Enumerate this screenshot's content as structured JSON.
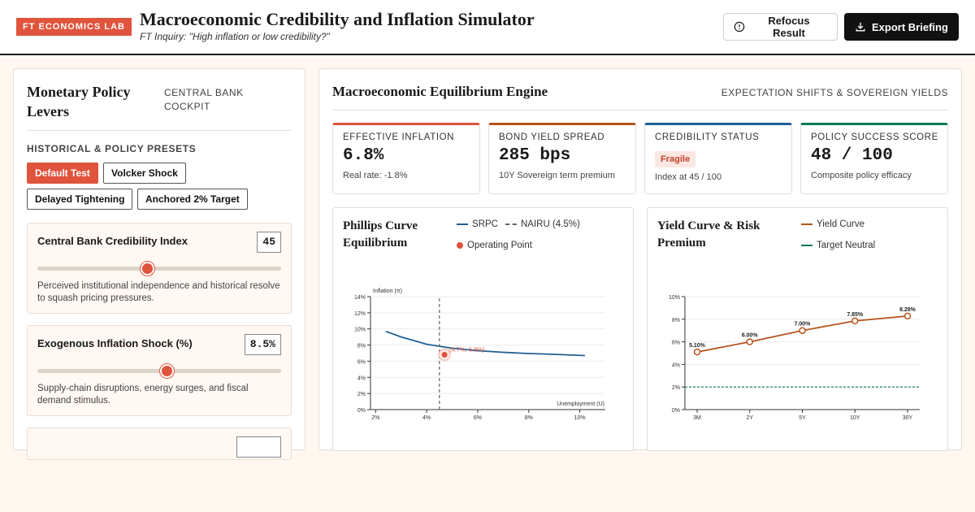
{
  "header": {
    "brand": "FT ECONOMICS LAB",
    "title": "Macroeconomic Credibility and Inflation Simulator",
    "subtitle": "FT Inquiry: \"High inflation or low credibility?\"",
    "refocus_label": "Refocus Result",
    "export_label": "Export Briefing"
  },
  "left_panel": {
    "title": "Monetary Policy Levers",
    "tag": "CENTRAL BANK COCKPIT",
    "presets_label": "HISTORICAL & POLICY PRESETS",
    "presets": [
      {
        "label": "Default Test",
        "active": true
      },
      {
        "label": "Volcker Shock",
        "active": false
      },
      {
        "label": "Delayed Tightening",
        "active": false
      },
      {
        "label": "Anchored 2% Target",
        "active": false
      }
    ],
    "levers": [
      {
        "label": "Central Bank Credibility Index",
        "value": "45",
        "fraction": 0.45,
        "description": "Perceived institutional independence and historical resolve to squash pricing pressures."
      },
      {
        "label": "Exogenous Inflation Shock (%)",
        "value": "8.5%",
        "fraction": 0.53,
        "description": "Supply-chain disruptions, energy surges, and fiscal demand stimulus."
      }
    ]
  },
  "right_panel": {
    "title": "Macroeconomic Equilibrium Engine",
    "tag": "EXPECTATION SHIFTS & SOVEREIGN YIELDS",
    "kpis": [
      {
        "label": "EFFECTIVE INFLATION",
        "value": "6.8%",
        "sub": "Real rate: -1.8%",
        "color": "#e0533d"
      },
      {
        "label": "BOND YIELD SPREAD",
        "value": "285 bps",
        "sub": "10Y Sovereign term premium",
        "color": "#b5541c"
      },
      {
        "label": "CREDIBILITY STATUS",
        "badge": "Fragile",
        "sub": "Index at 45 / 100",
        "color": "#1f5f95"
      },
      {
        "label": "POLICY SUCCESS SCORE",
        "value": "48 / 100",
        "sub": "Composite policy efficacy",
        "color": "#0f7a58"
      }
    ]
  },
  "charts": {
    "phillips": {
      "title": "Phillips Curve Equilibrium",
      "legend": {
        "srpc": "SRPC",
        "nairu": "NAIRU (4.5%)",
        "op": "Operating Point"
      }
    },
    "yield": {
      "title": "Yield Curve & Risk Premium",
      "legend": {
        "curve": "Yield Curve",
        "target": "Target Neutral"
      }
    }
  },
  "chart_data": [
    {
      "type": "line",
      "title": "Phillips Curve Equilibrium",
      "xlabel": "Unemployment (U)",
      "ylabel": "Inflation (π)",
      "xlim": [
        1.8,
        11
      ],
      "ylim": [
        0,
        14
      ],
      "xticks": [
        "2%",
        "4%",
        "6%",
        "8%",
        "10%"
      ],
      "yticks": [
        "0%",
        "2%",
        "4%",
        "6%",
        "8%",
        "10%",
        "12%",
        "14%"
      ],
      "series": [
        {
          "name": "SRPC",
          "x": [
            2.4,
            3,
            4,
            5,
            6,
            7,
            8,
            9,
            10.2
          ],
          "y": [
            9.7,
            9.0,
            8.1,
            7.6,
            7.3,
            7.1,
            6.95,
            6.85,
            6.7
          ]
        },
        {
          "name": "NAIRU (4.5%)",
          "x": [
            4.5,
            4.5
          ],
          "y": [
            0,
            14
          ]
        }
      ],
      "operating_point": {
        "x": 4.7,
        "y": 6.8,
        "label": "(4.7%, 6.8%)"
      },
      "color_srpc": "#1f5f95",
      "color_point": "#e0533d"
    },
    {
      "type": "line",
      "title": "Yield Curve & Risk Premium",
      "categories": [
        "3M",
        "2Y",
        "5Y",
        "10Y",
        "30Y"
      ],
      "ylim": [
        0,
        10
      ],
      "yticks": [
        "0%",
        "2%",
        "4%",
        "6%",
        "8%",
        "10%"
      ],
      "series": [
        {
          "name": "Yield Curve",
          "values": [
            5.1,
            6.0,
            7.0,
            7.85,
            8.28
          ],
          "labels": [
            "5.10%",
            "6.00%",
            "7.00%",
            "7.85%",
            "8.28%"
          ]
        },
        {
          "name": "Target Neutral",
          "values": [
            2,
            2,
            2,
            2,
            2
          ]
        }
      ],
      "color_curve": "#b5541c",
      "color_target": "#0f7a58"
    }
  ]
}
